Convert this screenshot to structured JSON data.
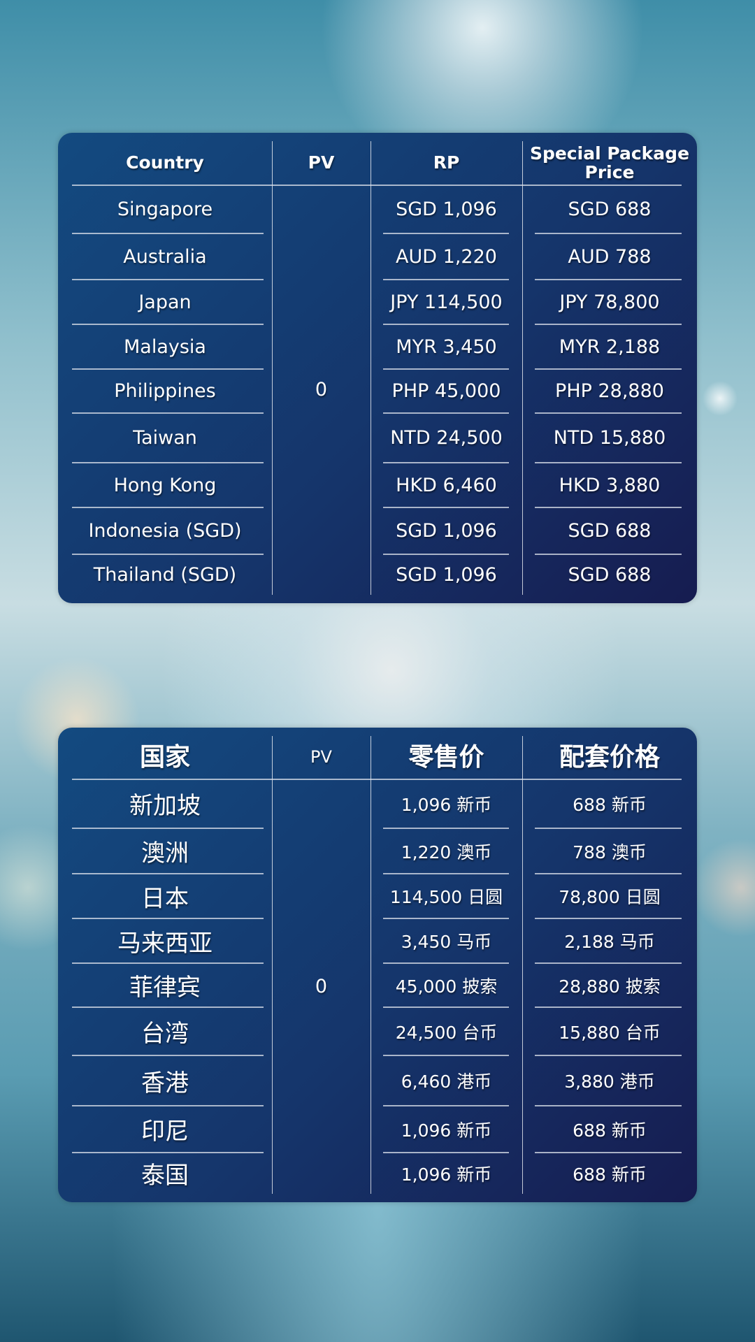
{
  "english_table": {
    "headers": [
      "Country",
      "PV",
      "RP",
      "Special Package Price"
    ],
    "pv_value": "0",
    "rows": [
      {
        "country": "Singapore",
        "rp": "SGD 1,096",
        "spp": "SGD 688"
      },
      {
        "country": "Australia",
        "rp": "AUD 1,220",
        "spp": "AUD 788"
      },
      {
        "country": "Japan",
        "rp": "JPY 114,500",
        "spp": "JPY 78,800"
      },
      {
        "country": "Malaysia",
        "rp": "MYR 3,450",
        "spp": "MYR 2,188"
      },
      {
        "country": "Philippines",
        "rp": "PHP 45,000",
        "spp": "PHP 28,880"
      },
      {
        "country": "Taiwan",
        "rp": "NTD 24,500",
        "spp": "NTD 15,880"
      },
      {
        "country": "Hong Kong",
        "rp": "HKD 6,460",
        "spp": "HKD 3,880"
      },
      {
        "country": "Indonesia (SGD)",
        "rp": "SGD 1,096",
        "spp": "SGD 688"
      },
      {
        "country": "Thailand (SGD)",
        "rp": "SGD 1,096",
        "spp": "SGD 688"
      }
    ]
  },
  "chinese_table": {
    "headers": [
      "国家",
      "PV",
      "零售价",
      "配套价格"
    ],
    "pv_value": "0",
    "rows": [
      {
        "country": "新加坡",
        "rp": "1,096 新币",
        "spp": "688 新币"
      },
      {
        "country": "澳洲",
        "rp": "1,220 澳币",
        "spp": "788 澳币"
      },
      {
        "country": "日本",
        "rp": "114,500 日圆",
        "spp": "78,800 日圆"
      },
      {
        "country": "马来西亚",
        "rp": "3,450 马币",
        "spp": "2,188 马币"
      },
      {
        "country": "菲律宾",
        "rp": "45,000 披索",
        "spp": "28,880 披索"
      },
      {
        "country": "台湾",
        "rp": "24,500 台币",
        "spp": "15,880 台币"
      },
      {
        "country": "香港",
        "rp": "6,460 港币",
        "spp": "3,880 港币"
      },
      {
        "country": "印尼",
        "rp": "1,096 新币",
        "spp": "688 新币"
      },
      {
        "country": "泰国",
        "rp": "1,096 新币",
        "spp": "688 新币"
      }
    ]
  }
}
